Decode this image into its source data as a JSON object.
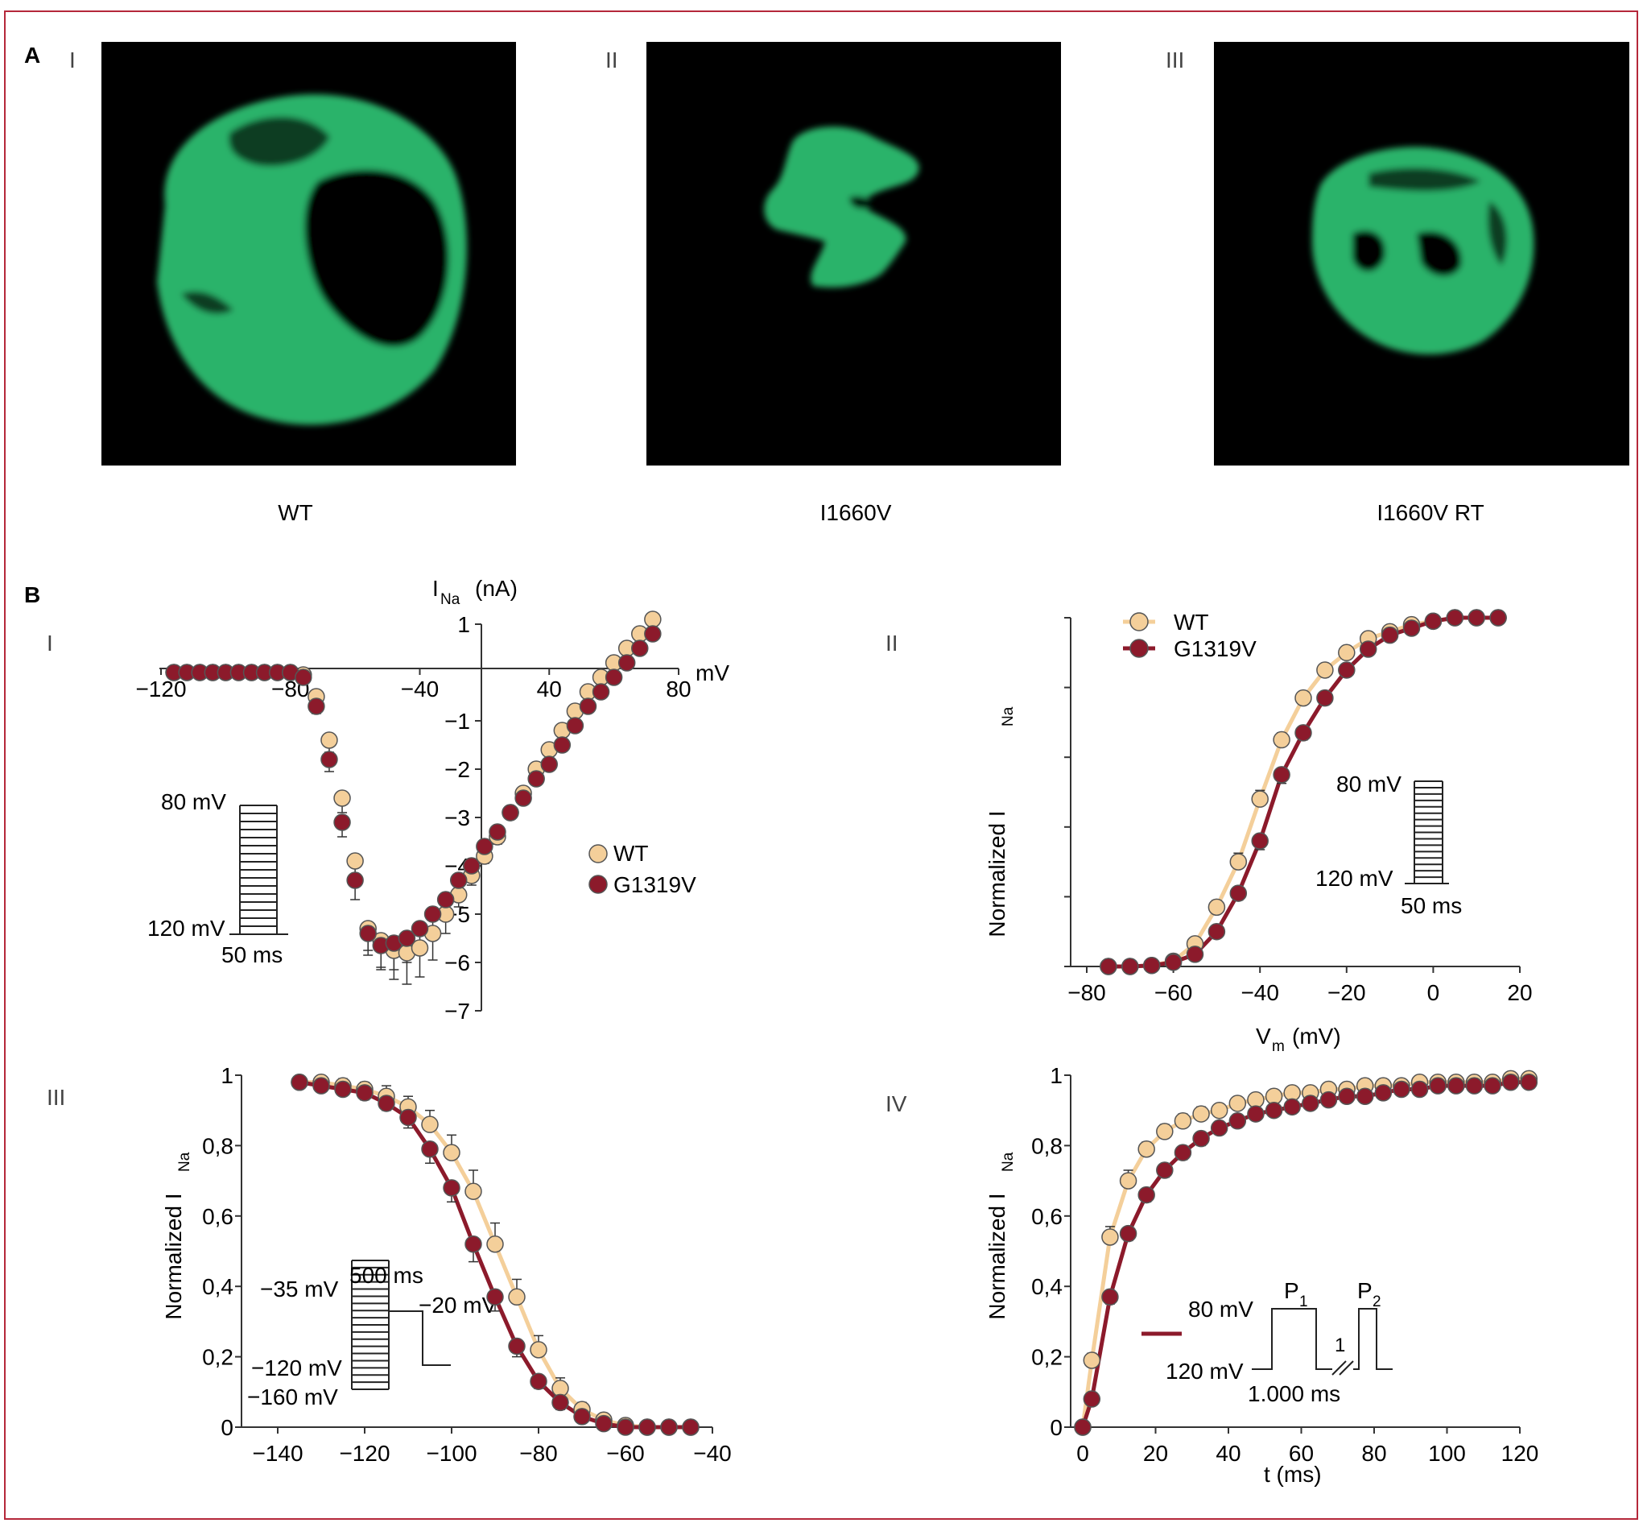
{
  "colors": {
    "frame": "#b5283a",
    "wt": "#f4cf9a",
    "mut": "#8c1a2b",
    "cell": "#2bb36a",
    "bg": "#000000"
  },
  "panel_a": {
    "letter": "A",
    "images": [
      {
        "roman": "I",
        "caption": "WT"
      },
      {
        "roman": "II",
        "caption": "I1660V"
      },
      {
        "roman": "III",
        "caption": "I1660V RT"
      }
    ]
  },
  "panel_b": {
    "letter": "B"
  },
  "chart_data": [
    {
      "id": "B-I",
      "roman": "I",
      "type": "scatter",
      "ylabel_main": "I",
      "ylabel_sub": "Na",
      "ylabel_unit": "(nA)",
      "xlabel": "mV",
      "xlim": [
        -120,
        80
      ],
      "ylim": [
        -7,
        1
      ],
      "xticks": [
        "−120",
        "−80",
        "−40",
        "40",
        "80"
      ],
      "yticks": [
        "1",
        "−1",
        "−2",
        "−3",
        "−4",
        "−5",
        "−6",
        "−7"
      ],
      "legend": [
        "WT",
        "G1319V"
      ],
      "protocol": {
        "top": "80 mV",
        "bottom": "120 mV",
        "time": "50 ms"
      },
      "series": [
        {
          "name": "WT",
          "x": [
            -115,
            -110,
            -105,
            -100,
            -95,
            -90,
            -85,
            -80,
            -75,
            -70,
            -65,
            -60,
            -55,
            -50,
            -45,
            -40,
            -35,
            -30,
            -25,
            -20,
            -15,
            -10,
            -5,
            0,
            5,
            10,
            15,
            20,
            25,
            30,
            35,
            40,
            45,
            50,
            55,
            60,
            65,
            70
          ],
          "y": [
            0,
            0,
            0,
            0,
            0,
            0,
            0,
            0,
            0,
            0,
            -0.05,
            -0.5,
            -1.4,
            -2.6,
            -3.9,
            -5.3,
            -5.55,
            -5.75,
            -5.8,
            -5.7,
            -5.4,
            -5.0,
            -4.6,
            -4.2,
            -3.8,
            -3.4,
            -2.9,
            -2.5,
            -2.0,
            -1.6,
            -1.2,
            -0.8,
            -0.4,
            -0.1,
            0.2,
            0.5,
            0.8,
            1.1
          ],
          "err": [
            0,
            0,
            0,
            0,
            0,
            0,
            0,
            0,
            0,
            0,
            0.05,
            0.15,
            0.25,
            0.3,
            0.4,
            0.45,
            0.55,
            0.6,
            0.65,
            0.6,
            0.55,
            0.4,
            0.25,
            0.2,
            0.15,
            0.15,
            0.1,
            0.1,
            0.1,
            0.1,
            0.1,
            0.1,
            0.1,
            0.1,
            0.1,
            0.1,
            0.1,
            0.1
          ]
        },
        {
          "name": "G1319V",
          "x": [
            -115,
            -110,
            -105,
            -100,
            -95,
            -90,
            -85,
            -80,
            -75,
            -70,
            -65,
            -60,
            -55,
            -50,
            -45,
            -40,
            -35,
            -30,
            -25,
            -20,
            -15,
            -10,
            -5,
            0,
            5,
            10,
            15,
            20,
            25,
            30,
            35,
            40,
            45,
            50,
            55,
            60,
            65,
            70
          ],
          "y": [
            0,
            0,
            0,
            0,
            0,
            0,
            0,
            0,
            0,
            0,
            -0.1,
            -0.7,
            -1.8,
            -3.1,
            -4.3,
            -5.4,
            -5.65,
            -5.6,
            -5.5,
            -5.3,
            -5.0,
            -4.7,
            -4.3,
            -4.0,
            -3.6,
            -3.3,
            -2.9,
            -2.6,
            -2.2,
            -1.9,
            -1.5,
            -1.1,
            -0.7,
            -0.4,
            -0.1,
            0.2,
            0.5,
            0.8
          ],
          "err": [
            0,
            0,
            0,
            0,
            0,
            0,
            0,
            0,
            0,
            0,
            0.05,
            0.15,
            0.25,
            0.3,
            0.4,
            0.45,
            0.5,
            0.55,
            0.5,
            0.45,
            0.4,
            0.3,
            0.2,
            0.15,
            0.15,
            0.1,
            0.1,
            0.1,
            0.1,
            0.1,
            0.1,
            0.1,
            0.1,
            0.1,
            0.1,
            0.1,
            0.1,
            0.1
          ]
        }
      ]
    },
    {
      "id": "B-II",
      "roman": "II",
      "type": "line",
      "ylabel_main": "Normalized I",
      "ylabel_sub": "Na",
      "xlabel_main": "V",
      "xlabel_sub": "m",
      "xlabel_unit": "(mV)",
      "xlim": [
        -80,
        20
      ],
      "ylim": [
        0,
        1
      ],
      "xticks": [
        "−80",
        "−60",
        "−40",
        "−20",
        "0",
        "20"
      ],
      "legend": [
        "WT",
        "G1319V"
      ],
      "protocol": {
        "top": "80 mV",
        "bottom": "120 mV",
        "time": "50 ms"
      },
      "series": [
        {
          "name": "WT",
          "x": [
            -75,
            -70,
            -65,
            -60,
            -55,
            -50,
            -45,
            -40,
            -35,
            -30,
            -25,
            -20,
            -15,
            -10,
            -5,
            0,
            5,
            10,
            15
          ],
          "y": [
            0,
            0,
            0.003,
            0.015,
            0.065,
            0.17,
            0.3,
            0.48,
            0.65,
            0.77,
            0.85,
            0.9,
            0.94,
            0.96,
            0.98,
            0.99,
            1.0,
            1.0,
            1.0
          ],
          "err": [
            0,
            0,
            0.005,
            0.01,
            0.01,
            0.02,
            0.025,
            0.025,
            0.02,
            0.015,
            0.01,
            0.01,
            0.005,
            0.005,
            0.005,
            0.005,
            0.005,
            0.005,
            0.005
          ]
        },
        {
          "name": "G1319V",
          "x": [
            -75,
            -70,
            -65,
            -60,
            -55,
            -50,
            -45,
            -40,
            -35,
            -30,
            -25,
            -20,
            -15,
            -10,
            -5,
            0,
            5,
            10,
            15
          ],
          "y": [
            0,
            0,
            0.003,
            0.012,
            0.035,
            0.1,
            0.21,
            0.36,
            0.55,
            0.67,
            0.77,
            0.85,
            0.91,
            0.95,
            0.97,
            0.99,
            1.0,
            1.0,
            1.0
          ],
          "err": [
            0,
            0,
            0.005,
            0.01,
            0.01,
            0.015,
            0.02,
            0.025,
            0.025,
            0.02,
            0.015,
            0.01,
            0.01,
            0.005,
            0.005,
            0.005,
            0.005,
            0.005,
            0.005
          ]
        }
      ]
    },
    {
      "id": "B-III",
      "roman": "III",
      "type": "line",
      "ylabel_main": "Normalized I",
      "ylabel_sub": "Na",
      "xlim": [
        -140,
        -40
      ],
      "ylim": [
        0,
        1
      ],
      "xticks": [
        "−140",
        "−120",
        "−100",
        "−80",
        "−60",
        "−40"
      ],
      "yticks": [
        "0",
        "0,2",
        "0,4",
        "0,6",
        "0,8",
        "1"
      ],
      "protocol": {
        "hold": "−35 mV",
        "step_time": "500 ms",
        "test": "−20 mV",
        "low1": "−120 mV",
        "low2": "−160 mV"
      },
      "series": [
        {
          "name": "WT",
          "x": [
            -135,
            -130,
            -125,
            -120,
            -115,
            -110,
            -105,
            -100,
            -95,
            -90,
            -85,
            -80,
            -75,
            -70,
            -65,
            -60,
            -55,
            -50,
            -45
          ],
          "y": [
            0.98,
            0.98,
            0.97,
            0.96,
            0.94,
            0.91,
            0.86,
            0.78,
            0.67,
            0.52,
            0.37,
            0.22,
            0.11,
            0.05,
            0.02,
            0.005,
            0,
            0,
            0
          ],
          "err": [
            0.01,
            0.01,
            0.02,
            0.02,
            0.03,
            0.03,
            0.04,
            0.05,
            0.06,
            0.06,
            0.05,
            0.04,
            0.03,
            0.02,
            0.01,
            0.005,
            0,
            0,
            0
          ]
        },
        {
          "name": "G1319V",
          "x": [
            -135,
            -130,
            -125,
            -120,
            -115,
            -110,
            -105,
            -100,
            -95,
            -90,
            -85,
            -80,
            -75,
            -70,
            -65,
            -60,
            -55,
            -50,
            -45
          ],
          "y": [
            0.98,
            0.97,
            0.96,
            0.95,
            0.92,
            0.88,
            0.79,
            0.68,
            0.52,
            0.37,
            0.23,
            0.13,
            0.07,
            0.03,
            0.01,
            0,
            0,
            0,
            0
          ],
          "err": [
            0.01,
            0.01,
            0.01,
            0.02,
            0.02,
            0.03,
            0.04,
            0.04,
            0.05,
            0.04,
            0.03,
            0.02,
            0.02,
            0.01,
            0.005,
            0,
            0,
            0,
            0
          ]
        }
      ]
    },
    {
      "id": "B-IV",
      "roman": "IV",
      "type": "line",
      "ylabel_main": "Normalized I",
      "ylabel_sub": "Na",
      "xlabel": "t (ms)",
      "xlim": [
        0,
        120
      ],
      "ylim": [
        0,
        1
      ],
      "xticks": [
        "0",
        "20",
        "40",
        "60",
        "80",
        "100",
        "120"
      ],
      "yticks": [
        "0",
        "0,2",
        "0,4",
        "0,6",
        "0,8",
        "1"
      ],
      "protocol": {
        "top": "80 mV",
        "bottom": "120 mV",
        "duration": "1.000 ms",
        "p1_main": "P",
        "p1_sub": "1",
        "p2_main": "P",
        "p2_sub": "2",
        "gap": "1"
      },
      "series": [
        {
          "name": "WT",
          "x": [
            0,
            2.5,
            7.5,
            12.5,
            17.5,
            22.5,
            27.5,
            32.5,
            37.5,
            42.5,
            47.5,
            52.5,
            57.5,
            62.5,
            67.5,
            72.5,
            77.5,
            82.5,
            87.5,
            92.5,
            97.5,
            102.5,
            107.5,
            112.5,
            117.5,
            122.5
          ],
          "y": [
            0,
            0.19,
            0.54,
            0.7,
            0.79,
            0.84,
            0.87,
            0.89,
            0.9,
            0.92,
            0.93,
            0.94,
            0.95,
            0.95,
            0.96,
            0.96,
            0.97,
            0.97,
            0.97,
            0.98,
            0.98,
            0.98,
            0.98,
            0.98,
            0.99,
            0.99
          ],
          "err": [
            0,
            0.02,
            0.03,
            0.03,
            0.02,
            0.02,
            0.02,
            0.02,
            0.01,
            0.01,
            0.01,
            0.01,
            0.01,
            0.01,
            0.01,
            0.01,
            0.01,
            0.01,
            0.01,
            0.01,
            0.01,
            0.01,
            0.01,
            0.01,
            0.01,
            0.01
          ]
        },
        {
          "name": "G1319V",
          "x": [
            0,
            2.5,
            7.5,
            12.5,
            17.5,
            22.5,
            27.5,
            32.5,
            37.5,
            42.5,
            47.5,
            52.5,
            57.5,
            62.5,
            67.5,
            72.5,
            77.5,
            82.5,
            87.5,
            92.5,
            97.5,
            102.5,
            107.5,
            112.5,
            117.5,
            122.5
          ],
          "y": [
            0,
            0.08,
            0.37,
            0.55,
            0.66,
            0.73,
            0.78,
            0.82,
            0.85,
            0.87,
            0.89,
            0.9,
            0.91,
            0.92,
            0.93,
            0.94,
            0.94,
            0.95,
            0.96,
            0.96,
            0.97,
            0.97,
            0.97,
            0.97,
            0.98,
            0.98
          ],
          "err": [
            0,
            0.01,
            0.02,
            0.02,
            0.02,
            0.02,
            0.02,
            0.02,
            0.01,
            0.01,
            0.01,
            0.01,
            0.01,
            0.01,
            0.01,
            0.01,
            0.01,
            0.01,
            0.01,
            0.01,
            0.01,
            0.01,
            0.01,
            0.01,
            0.01,
            0.01
          ]
        }
      ]
    }
  ]
}
